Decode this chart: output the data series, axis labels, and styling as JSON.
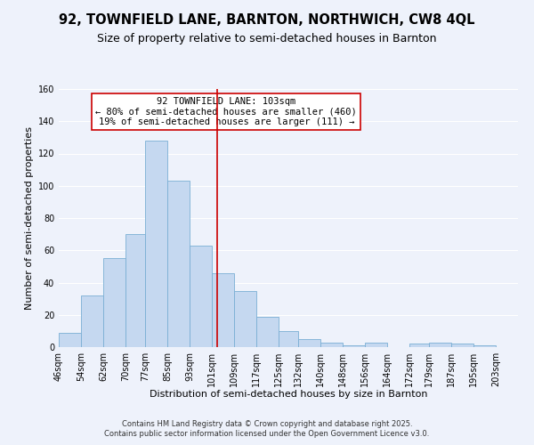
{
  "title": "92, TOWNFIELD LANE, BARNTON, NORTHWICH, CW8 4QL",
  "subtitle": "Size of property relative to semi-detached houses in Barnton",
  "xlabel": "Distribution of semi-detached houses by size in Barnton",
  "ylabel": "Number of semi-detached properties",
  "bar_left_edges": [
    46,
    54,
    62,
    70,
    77,
    85,
    93,
    101,
    109,
    117,
    125,
    132,
    140,
    148,
    156,
    164,
    172,
    179,
    187,
    195
  ],
  "bar_widths": [
    8,
    8,
    8,
    7,
    8,
    8,
    8,
    8,
    8,
    8,
    7,
    8,
    8,
    8,
    8,
    8,
    7,
    8,
    8,
    8
  ],
  "bar_heights": [
    9,
    32,
    55,
    70,
    128,
    103,
    63,
    46,
    35,
    19,
    10,
    5,
    3,
    1,
    3,
    0,
    2,
    3,
    2,
    1
  ],
  "tick_labels": [
    "46sqm",
    "54sqm",
    "62sqm",
    "70sqm",
    "77sqm",
    "85sqm",
    "93sqm",
    "101sqm",
    "109sqm",
    "117sqm",
    "125sqm",
    "132sqm",
    "140sqm",
    "148sqm",
    "156sqm",
    "164sqm",
    "172sqm",
    "179sqm",
    "187sqm",
    "195sqm",
    "203sqm"
  ],
  "tick_positions": [
    46,
    54,
    62,
    70,
    77,
    85,
    93,
    101,
    109,
    117,
    125,
    132,
    140,
    148,
    156,
    164,
    172,
    179,
    187,
    195,
    203
  ],
  "bar_color": "#c5d8f0",
  "bar_edge_color": "#7aafd4",
  "vline_x": 103,
  "vline_color": "#cc0000",
  "annotation_title": "92 TOWNFIELD LANE: 103sqm",
  "annotation_line1": "← 80% of semi-detached houses are smaller (460)",
  "annotation_line2": "19% of semi-detached houses are larger (111) →",
  "annotation_box_color": "#ffffff",
  "annotation_box_edge": "#cc0000",
  "ylim": [
    0,
    160
  ],
  "yticks": [
    0,
    20,
    40,
    60,
    80,
    100,
    120,
    140,
    160
  ],
  "footnote1": "Contains HM Land Registry data © Crown copyright and database right 2025.",
  "footnote2": "Contains public sector information licensed under the Open Government Licence v3.0.",
  "bg_color": "#eef2fb",
  "grid_color": "#ffffff",
  "title_fontsize": 10.5,
  "subtitle_fontsize": 9,
  "axis_label_fontsize": 8,
  "tick_fontsize": 7,
  "annotation_fontsize": 7.5,
  "footnote_fontsize": 6
}
